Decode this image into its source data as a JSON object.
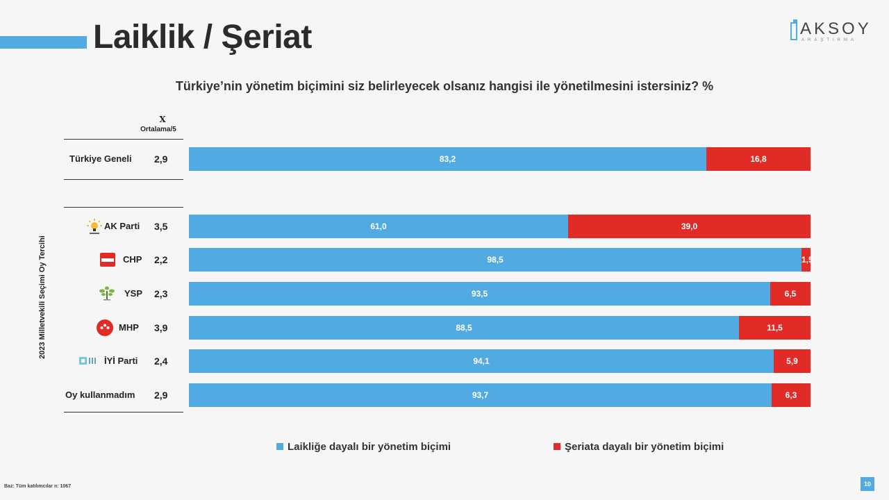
{
  "header": {
    "title": "Laiklik / Şeriat",
    "logo_text": "AKSOY",
    "logo_subtext": "ARAŞTIRMA"
  },
  "question": "Türkiye’nin yönetim biçimini siz belirleyecek olsanız hangisi ile yönetilmesini istersiniz? %",
  "table_header": {
    "mean_symbol": "X",
    "mean_label": "Ortalama/5"
  },
  "side_label": "2023 Milletvekili Seçimi Oy Tercihi",
  "colors": {
    "laik": "#52aae3",
    "seriat": "#e12b27",
    "accent": "#52aae3"
  },
  "chart_data": {
    "type": "bar",
    "orientation": "horizontal",
    "stacked": true,
    "categories": [
      "Türkiye Geneli",
      "AK Parti",
      "CHP",
      "YSP",
      "MHP",
      "İYİ Parti",
      "Oy kullanmadım"
    ],
    "averages": [
      "2,9",
      "3,5",
      "2,2",
      "2,3",
      "3,9",
      "2,4",
      "2,9"
    ],
    "icons": [
      null,
      "akp-bulb-icon",
      "chp-logo-icon",
      "ysp-tree-icon",
      "mhp-crescent-icon",
      "iyi-logo-icon",
      null
    ],
    "series": [
      {
        "name": "Laikliğe dayalı bir yönetim biçimi",
        "color": "#52aae3",
        "values": [
          83.2,
          61.0,
          98.5,
          93.5,
          88.5,
          94.1,
          93.7
        ],
        "labels": [
          "83,2",
          "61,0",
          "98,5",
          "93,5",
          "88,5",
          "94,1",
          "93,7"
        ]
      },
      {
        "name": "Şeriata dayalı bir yönetim biçimi",
        "color": "#e12b27",
        "values": [
          16.8,
          39.0,
          1.5,
          6.5,
          11.5,
          5.9,
          6.3
        ],
        "labels": [
          "16,8",
          "39,0",
          "1,5",
          "6,5",
          "11,5",
          "5,9",
          "6,3"
        ]
      }
    ],
    "xlim": [
      0,
      100
    ],
    "legend_position": "bottom"
  },
  "footer": {
    "note": "Baz: Tüm katılımcılar n: 1067",
    "page": "10"
  }
}
